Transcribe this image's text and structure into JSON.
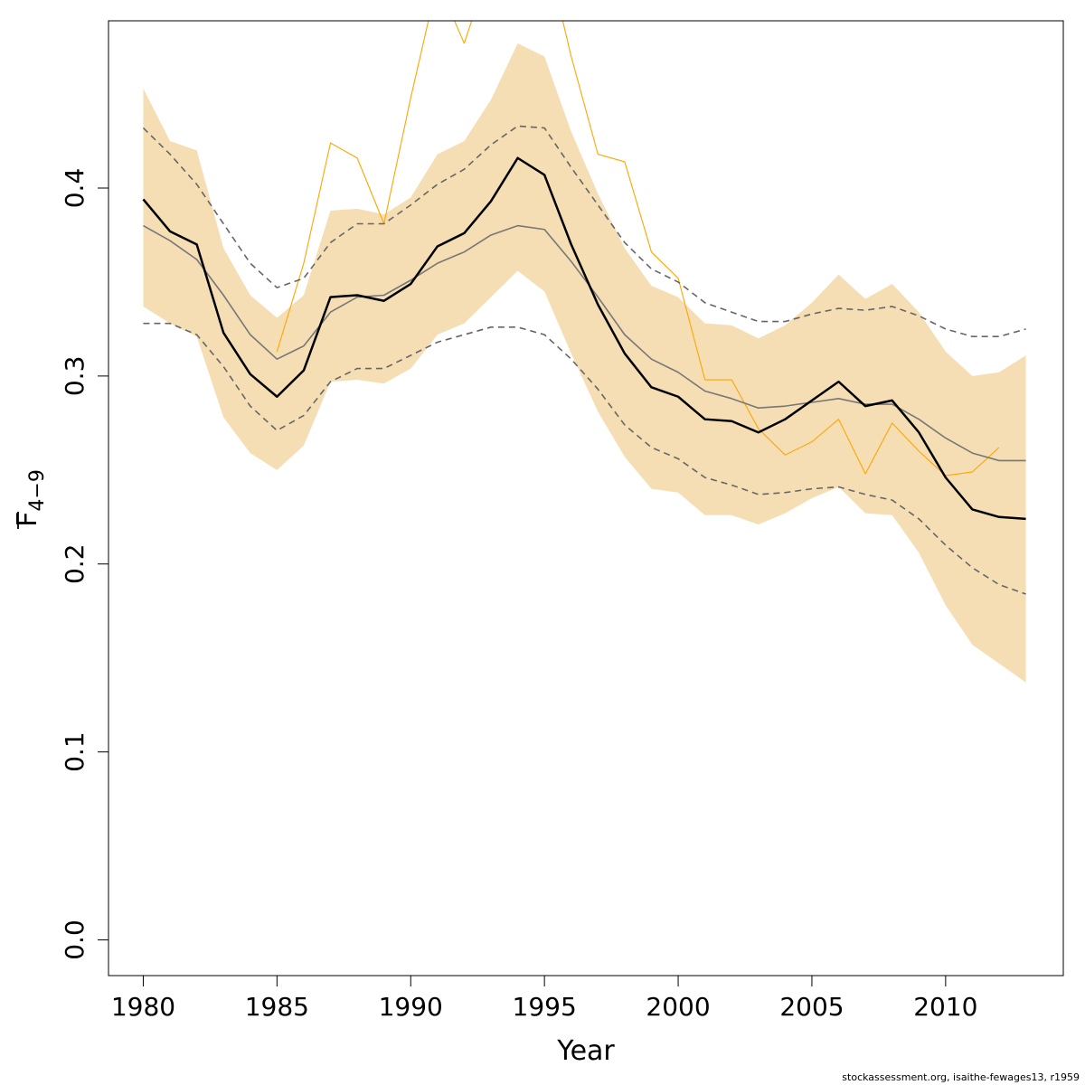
{
  "chart_data": {
    "type": "line",
    "xlabel": "Year",
    "ylabel_main": "F",
    "ylabel_sub": "4−9",
    "xlim": [
      1978.7,
      2014.4
    ],
    "ylim": [
      -0.019,
      0.489
    ],
    "x_ticks": [
      1980,
      1985,
      1990,
      1995,
      2000,
      2005,
      2010
    ],
    "x_tick_labels": [
      "1980",
      "1985",
      "1990",
      "1995",
      "2000",
      "2005",
      "2010"
    ],
    "y_ticks": [
      0.0,
      0.1,
      0.2,
      0.3,
      0.4
    ],
    "y_tick_labels": [
      "0.0",
      "0.1",
      "0.2",
      "0.3",
      "0.4"
    ],
    "grid": false,
    "colors": {
      "band": "#f5deb3",
      "estimate": "#000000",
      "alt_estimate": "#777777",
      "alt_interval": "#666666",
      "retro": "#ffa500"
    },
    "x": [
      1980,
      1981,
      1982,
      1983,
      1984,
      1985,
      1986,
      1987,
      1988,
      1989,
      1990,
      1991,
      1992,
      1993,
      1994,
      1995,
      1996,
      1997,
      1998,
      1999,
      2000,
      2001,
      2002,
      2003,
      2004,
      2005,
      2006,
      2007,
      2008,
      2009,
      2010,
      2011,
      2012,
      2013
    ],
    "band_upper": [
      0.453,
      0.425,
      0.42,
      0.368,
      0.343,
      0.331,
      0.343,
      0.388,
      0.389,
      0.386,
      0.395,
      0.418,
      0.425,
      0.447,
      0.477,
      0.47,
      0.43,
      0.397,
      0.368,
      0.348,
      0.342,
      0.328,
      0.327,
      0.32,
      0.327,
      0.339,
      0.354,
      0.341,
      0.349,
      0.334,
      0.313,
      0.3,
      0.302,
      0.311
    ],
    "band_lower": [
      0.337,
      0.328,
      0.321,
      0.278,
      0.259,
      0.25,
      0.263,
      0.297,
      0.298,
      0.296,
      0.304,
      0.322,
      0.328,
      0.342,
      0.356,
      0.345,
      0.312,
      0.281,
      0.257,
      0.24,
      0.238,
      0.226,
      0.226,
      0.221,
      0.227,
      0.235,
      0.241,
      0.227,
      0.226,
      0.206,
      0.178,
      0.157,
      0.147,
      0.137
    ],
    "series": [
      {
        "values": [
          0.394,
          0.377,
          0.37,
          0.323,
          0.301,
          0.289,
          0.303,
          0.342,
          0.343,
          0.34,
          0.349,
          0.369,
          0.376,
          0.393,
          0.416,
          0.407,
          0.37,
          0.338,
          0.312,
          0.294,
          0.289,
          0.277,
          0.276,
          0.27,
          0.277,
          0.287,
          0.297,
          0.284,
          0.287,
          0.27,
          0.246,
          0.229,
          0.225,
          0.224
        ]
      },
      {
        "values": [
          0.38,
          0.372,
          0.362,
          0.343,
          0.322,
          0.309,
          0.316,
          0.334,
          0.342,
          0.343,
          0.351,
          0.36,
          0.366,
          0.375,
          0.38,
          0.378,
          0.361,
          0.342,
          0.322,
          0.309,
          0.302,
          0.292,
          0.288,
          0.283,
          0.284,
          0.286,
          0.288,
          0.285,
          0.285,
          0.277,
          0.267,
          0.259,
          0.255,
          0.255
        ]
      },
      {
        "values": [
          0.432,
          0.418,
          0.402,
          0.381,
          0.36,
          0.347,
          0.352,
          0.371,
          0.381,
          0.381,
          0.391,
          0.402,
          0.41,
          0.423,
          0.433,
          0.432,
          0.411,
          0.391,
          0.371,
          0.357,
          0.35,
          0.339,
          0.334,
          0.329,
          0.329,
          0.333,
          0.336,
          0.335,
          0.337,
          0.332,
          0.325,
          0.321,
          0.321,
          0.325
        ]
      },
      {
        "values": [
          0.328,
          0.328,
          0.322,
          0.305,
          0.284,
          0.271,
          0.279,
          0.297,
          0.304,
          0.304,
          0.311,
          0.318,
          0.322,
          0.326,
          0.326,
          0.322,
          0.309,
          0.293,
          0.274,
          0.262,
          0.256,
          0.246,
          0.242,
          0.237,
          0.238,
          0.24,
          0.241,
          0.237,
          0.234,
          0.224,
          0.21,
          0.198,
          0.189,
          0.184
        ]
      },
      {
        "values": [
          null,
          null,
          null,
          null,
          null,
          0.313,
          0.36,
          0.424,
          0.416,
          0.381,
          0.448,
          0.51,
          0.477,
          0.52,
          0.54,
          0.53,
          0.47,
          0.418,
          0.414,
          0.366,
          0.352,
          0.298,
          0.298,
          0.272,
          0.258,
          0.265,
          0.277,
          0.248,
          0.275,
          0.26,
          0.247,
          0.249,
          0.262,
          null
        ]
      }
    ]
  },
  "credit": "stockassessment.org, isaithe-fewages13, r1959"
}
